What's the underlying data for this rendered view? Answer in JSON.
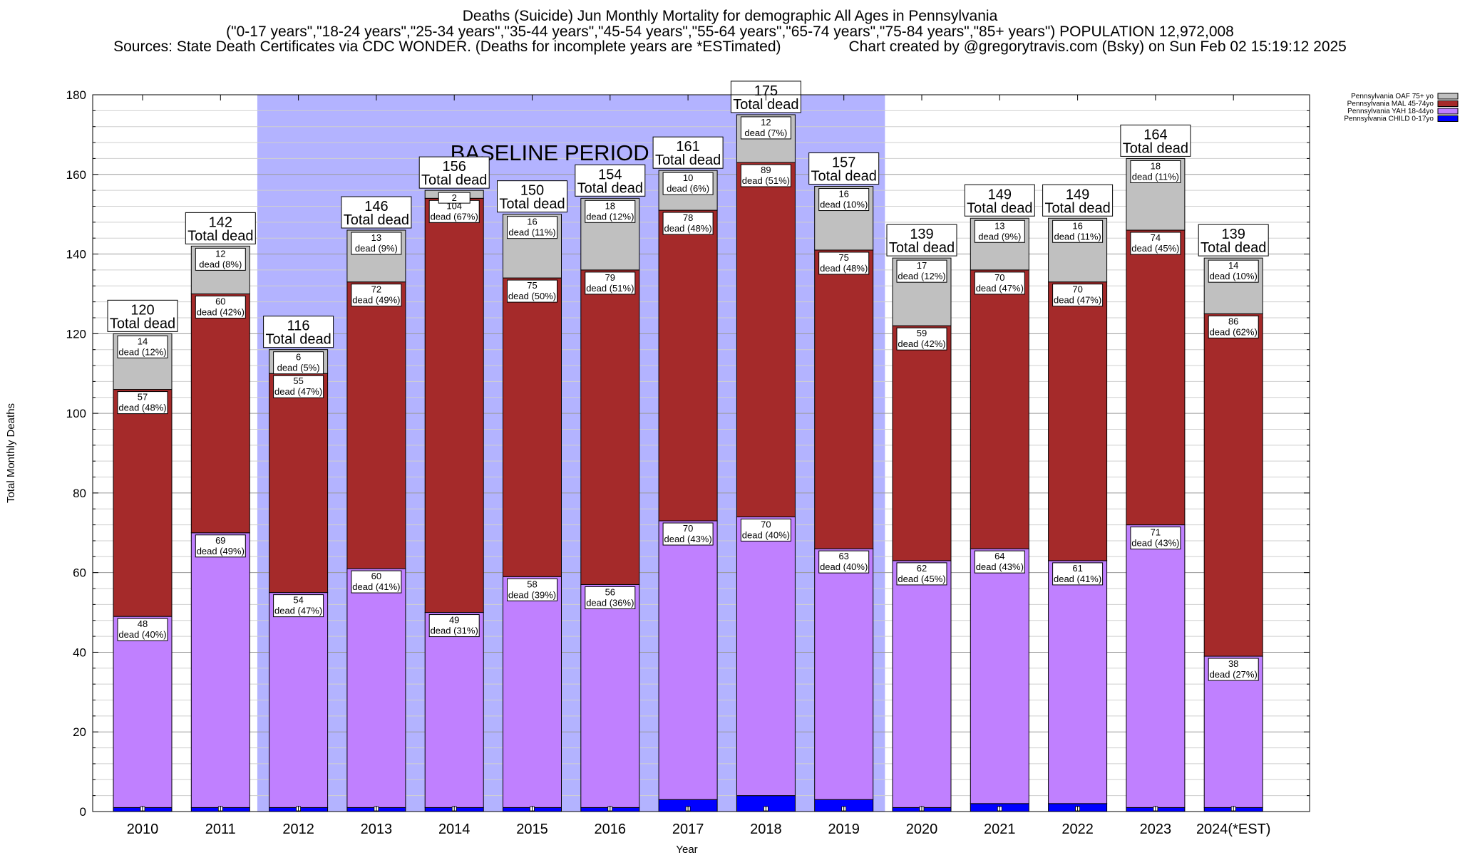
{
  "header": {
    "title": "Deaths (Suicide) Jun Monthly Mortality for demographic All Ages in Pennsylvania",
    "subtitle": "(\"0-17 years\",\"18-24 years\",\"25-34 years\",\"35-44 years\",\"45-54 years\",\"55-64 years\",\"65-74 years\",\"75-84 years\",\"85+ years\") POPULATION 12,972,008",
    "sources": "Sources: State Death Certificates via CDC WONDER. (Deaths for incomplete years are *ESTimated)",
    "credit": "Chart created by @gregorytravis.com (Bsky) on Sun Feb 02 15:19:12 2025"
  },
  "colors": {
    "child": "#0000ff",
    "yah": "#c080ff",
    "mal": "#a52a2a",
    "oaf": "#c0c0c0",
    "baseline": "#b3b3ff"
  },
  "chart_data": {
    "type": "bar",
    "stacked": true,
    "xlabel": "Year",
    "ylabel": "Total Monthly Deaths",
    "ylim": [
      0,
      180
    ],
    "yticks": [
      0,
      20,
      40,
      60,
      80,
      100,
      120,
      140,
      160,
      180
    ],
    "categories": [
      "2010",
      "2011",
      "2012",
      "2013",
      "2014",
      "2015",
      "2016",
      "2017",
      "2018",
      "2019",
      "2020",
      "2021",
      "2022",
      "2023",
      "2024(*EST)"
    ],
    "baseline": {
      "label": "BASELINE PERIOD",
      "from": "2012",
      "to": "2019"
    },
    "total_suffix": "Total dead",
    "legend_position": "top-right",
    "series": [
      {
        "name": "Pennsylvania CHILD 0-17yo",
        "key": "child",
        "values": [
          1,
          1,
          1,
          1,
          1,
          1,
          1,
          3,
          4,
          3,
          1,
          2,
          2,
          1,
          1
        ]
      },
      {
        "name": "Pennsylvania YAH 18-44yo",
        "key": "yah",
        "values": [
          48,
          69,
          54,
          60,
          49,
          58,
          56,
          70,
          70,
          63,
          62,
          64,
          61,
          71,
          38
        ],
        "labels": [
          "48|dead (40%)",
          "69|dead (49%)",
          "54|dead (47%)",
          "60|dead (41%)",
          "49|dead (31%)",
          "58|dead (39%)",
          "56|dead (36%)",
          "70|dead (43%)",
          "70|dead (40%)",
          "63|dead (40%)",
          "62|dead (45%)",
          "64|dead (43%)",
          "61|dead (41%)",
          "71|dead (43%)",
          "38|dead (27%)"
        ]
      },
      {
        "name": "Pennsylvania MAL 45-74yo",
        "key": "mal",
        "values": [
          57,
          60,
          55,
          72,
          104,
          75,
          79,
          78,
          89,
          75,
          59,
          70,
          70,
          74,
          86
        ],
        "labels": [
          "57|dead (48%)",
          "60|dead (42%)",
          "55|dead (47%)",
          "72|dead (49%)",
          "104|dead (67%)",
          "75|dead (50%)",
          "79|dead (51%)",
          "78|dead (48%)",
          "89|dead (51%)",
          "75|dead (48%)",
          "59|dead (42%)",
          "70|dead (47%)",
          "70|dead (47%)",
          "74|dead (45%)",
          "86|dead (62%)"
        ]
      },
      {
        "name": "Pennsylvania OAF 75+ yo",
        "key": "oaf",
        "values": [
          14,
          12,
          6,
          13,
          2,
          16,
          18,
          10,
          12,
          16,
          17,
          13,
          16,
          18,
          14
        ],
        "labels": [
          "14|dead (12%)",
          "12|dead (8%)",
          "6|dead (5%)",
          "13|dead (9%)",
          "2|",
          "16|dead (11%)",
          "18|dead (12%)",
          "10|dead (6%)",
          "12|dead (7%)",
          "16|dead (10%)",
          "17|dead (12%)",
          "13|dead (9%)",
          "16|dead (11%)",
          "18|dead (11%)",
          "14|dead (10%)"
        ]
      }
    ],
    "totals": [
      120,
      142,
      116,
      146,
      156,
      150,
      154,
      161,
      175,
      157,
      139,
      149,
      149,
      164,
      139
    ]
  }
}
